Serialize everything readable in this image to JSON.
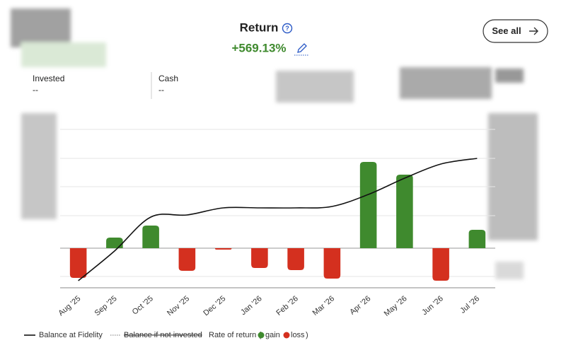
{
  "header": {
    "title": "Return",
    "value": "+569.13%",
    "button": "See all"
  },
  "summary": [
    {
      "label": "Invested",
      "value": "--"
    },
    {
      "label": "Cash",
      "value": "--"
    }
  ],
  "chart_data": {
    "type": "bar",
    "categories": [
      "Aug '25",
      "Sep '25",
      "Oct '25",
      "Nov '25",
      "Dec '25",
      "Jan '26",
      "Feb '26",
      "Mar '26",
      "Apr '26",
      "May '26",
      "Jun '26",
      "Jul '26"
    ],
    "ylim": [
      -56,
      168
    ],
    "y2lim": [
      0,
      224
    ],
    "series": [
      {
        "name": "Balance at Fidelity",
        "type": "line",
        "axis": "y2",
        "color": "#111111",
        "values": [
          10,
          52,
          100,
          103,
          113,
          113,
          113,
          115,
          132,
          155,
          175,
          183
        ]
      },
      {
        "name": "Rate of return (",
        "type": "bar",
        "gain_color": "#3f8a2e",
        "loss_color": "#d4301f",
        "values": [
          -42,
          15,
          32,
          -32,
          -2,
          -28,
          -31,
          -43,
          122,
          104,
          -46,
          26
        ]
      }
    ],
    "legend_extra": {
      "dotted": "Balance if not invested",
      "gain": "gain",
      "loss": "loss",
      "close": ")"
    }
  }
}
